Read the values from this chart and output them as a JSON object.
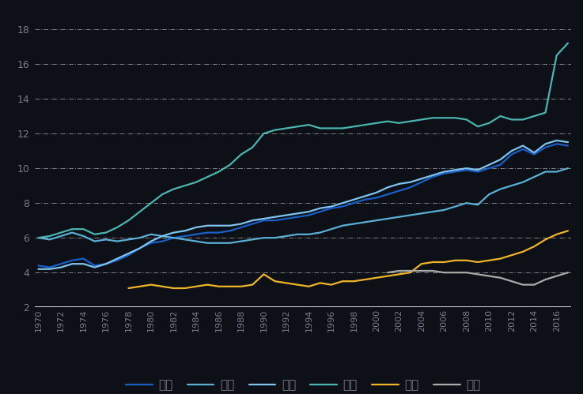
{
  "background_color": "#0d1117",
  "text_color": "#7a7a8a",
  "ylim": [
    2,
    19
  ],
  "yticks": [
    2,
    4,
    6,
    8,
    10,
    12,
    14,
    16,
    18
  ],
  "years": [
    1970,
    1971,
    1972,
    1973,
    1974,
    1975,
    1976,
    1977,
    1978,
    1979,
    1980,
    1981,
    1982,
    1983,
    1984,
    1985,
    1986,
    1987,
    1988,
    1989,
    1990,
    1991,
    1992,
    1993,
    1994,
    1995,
    1996,
    1997,
    1998,
    1999,
    2000,
    2001,
    2002,
    2003,
    2004,
    2005,
    2006,
    2007,
    2008,
    2009,
    2010,
    2011,
    2012,
    2013,
    2014,
    2015,
    2016,
    2017
  ],
  "series": {
    "德国": {
      "color": "#1a5fc8",
      "linewidth": 1.6,
      "values": [
        4.4,
        4.3,
        4.5,
        4.7,
        4.8,
        4.4,
        4.5,
        4.7,
        5.0,
        5.4,
        5.7,
        5.8,
        6.0,
        6.1,
        6.2,
        6.3,
        6.3,
        6.4,
        6.6,
        6.8,
        7.0,
        7.0,
        7.1,
        7.2,
        7.3,
        7.5,
        7.7,
        7.8,
        8.0,
        8.2,
        8.3,
        8.5,
        8.7,
        8.9,
        9.2,
        9.5,
        9.7,
        9.8,
        9.9,
        9.8,
        10.0,
        10.2,
        10.8,
        11.1,
        10.8,
        11.2,
        11.4,
        11.3
      ]
    },
    "日本": {
      "color": "#5bafd6",
      "linewidth": 1.6,
      "values": [
        6.0,
        5.9,
        6.1,
        6.3,
        6.1,
        5.8,
        5.9,
        5.8,
        5.9,
        6.0,
        6.2,
        6.1,
        6.0,
        5.9,
        5.8,
        5.7,
        5.7,
        5.7,
        5.8,
        5.9,
        6.0,
        6.0,
        6.1,
        6.2,
        6.2,
        6.3,
        6.5,
        6.7,
        6.8,
        6.9,
        7.0,
        7.1,
        7.2,
        7.3,
        7.4,
        7.5,
        7.6,
        7.8,
        8.0,
        7.9,
        8.5,
        8.8,
        9.0,
        9.2,
        9.5,
        9.8,
        9.8,
        10.0
      ]
    },
    "英国": {
      "color": "#7fc4f0",
      "linewidth": 1.6,
      "values": [
        4.2,
        4.2,
        4.3,
        4.5,
        4.5,
        4.3,
        4.5,
        4.8,
        5.1,
        5.4,
        5.8,
        6.1,
        6.3,
        6.4,
        6.6,
        6.7,
        6.7,
        6.7,
        6.8,
        7.0,
        7.1,
        7.2,
        7.3,
        7.4,
        7.5,
        7.7,
        7.8,
        8.0,
        8.2,
        8.4,
        8.6,
        8.9,
        9.1,
        9.2,
        9.4,
        9.6,
        9.8,
        9.9,
        10.0,
        9.9,
        10.2,
        10.5,
        11.0,
        11.3,
        10.9,
        11.4,
        11.6,
        11.5
      ]
    },
    "美国": {
      "color": "#4ab5b0",
      "linewidth": 1.6,
      "values": [
        6.0,
        6.1,
        6.3,
        6.5,
        6.5,
        6.2,
        6.3,
        6.6,
        7.0,
        7.5,
        8.0,
        8.5,
        8.8,
        9.0,
        9.2,
        9.5,
        9.8,
        10.2,
        10.8,
        11.2,
        12.0,
        12.2,
        12.3,
        12.4,
        12.5,
        12.3,
        12.3,
        12.3,
        12.4,
        12.5,
        12.6,
        12.7,
        12.6,
        12.7,
        12.8,
        12.9,
        12.9,
        12.9,
        12.8,
        12.4,
        12.6,
        13.0,
        12.8,
        12.8,
        13.0,
        13.2,
        16.5,
        17.2
      ]
    },
    "中国": {
      "color": "#f0b429",
      "linewidth": 1.6,
      "values": [
        null,
        null,
        null,
        null,
        null,
        null,
        null,
        null,
        3.1,
        3.2,
        3.3,
        3.2,
        3.1,
        3.1,
        3.2,
        3.3,
        3.2,
        3.2,
        3.2,
        3.3,
        3.9,
        3.5,
        3.4,
        3.3,
        3.2,
        3.4,
        3.3,
        3.5,
        3.5,
        3.6,
        3.7,
        3.8,
        3.9,
        4.0,
        4.5,
        4.6,
        4.6,
        4.7,
        4.7,
        4.6,
        4.7,
        4.8,
        5.0,
        5.2,
        5.5,
        5.9,
        6.2,
        6.4
      ]
    },
    "印度": {
      "color": "#aaaaaa",
      "linewidth": 1.6,
      "values": [
        null,
        null,
        null,
        null,
        null,
        null,
        null,
        null,
        null,
        null,
        null,
        null,
        null,
        null,
        null,
        null,
        null,
        null,
        null,
        null,
        null,
        null,
        null,
        null,
        null,
        null,
        null,
        null,
        null,
        null,
        null,
        4.0,
        4.1,
        4.1,
        4.1,
        4.1,
        4.0,
        4.0,
        4.0,
        3.9,
        3.8,
        3.7,
        3.5,
        3.3,
        3.3,
        3.6,
        3.8,
        4.0
      ]
    }
  },
  "legend_labels": [
    "德国",
    "日本",
    "英国",
    "美国",
    "中国",
    "印度"
  ],
  "xtick_years": [
    1970,
    1972,
    1974,
    1976,
    1978,
    1980,
    1982,
    1984,
    1986,
    1988,
    1990,
    1992,
    1994,
    1996,
    1998,
    2000,
    2002,
    2004,
    2006,
    2008,
    2010,
    2012,
    2014,
    2016
  ]
}
